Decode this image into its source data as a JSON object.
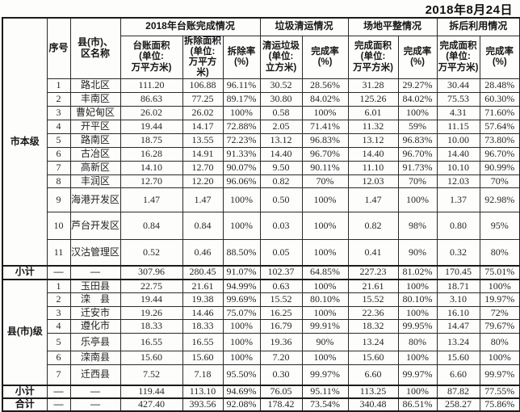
{
  "date": "2018年8月24日",
  "table": {
    "corner_groups": [
      "市本级",
      "县(市)级"
    ],
    "header": {
      "index": "序号",
      "name": "县(市)、\n区名称",
      "groups": [
        {
          "label": "2018年台账完成情况",
          "span": 3
        },
        {
          "label": "垃圾清运情况",
          "span": 2
        },
        {
          "label": "场地平整情况",
          "span": 2
        },
        {
          "label": "拆后利用情况",
          "span": 2
        }
      ],
      "columns": [
        "台账面积\n(单位:\n万平方米)",
        "拆除面积\n(单位:\n万平方米)",
        "拆除率\n(%)",
        "清运垃圾\n(单位:\n立方米)",
        "完成率\n(%)",
        "完成面积\n(单位:\n万平方米)",
        "完成率\n(%)",
        "完成面积\n(单位:\n万平方米)",
        "完成率\n(%)"
      ]
    },
    "sections": [
      {
        "label": "市本级",
        "rows": [
          {
            "no": "1",
            "name": "路北区",
            "values": [
              "111.20",
              "106.88",
              "96.11%",
              "30.52",
              "28.56%",
              "31.28",
              "29.27%",
              "30.44",
              "28.48%"
            ]
          },
          {
            "no": "2",
            "name": "丰南区",
            "values": [
              "86.63",
              "77.25",
              "89.17%",
              "30.80",
              "84.02%",
              "125.26",
              "84.02%",
              "75.53",
              "60.30%"
            ]
          },
          {
            "no": "3",
            "name": "曹妃甸区",
            "values": [
              "26.02",
              "26.02",
              "100%",
              "0.58",
              "100%",
              "6.01",
              "100%",
              "4.31",
              "71.60%"
            ]
          },
          {
            "no": "4",
            "name": "开平区",
            "values": [
              "19.44",
              "14.17",
              "72.88%",
              "2.05",
              "71.41%",
              "11.32",
              "59%",
              "11.15",
              "57.64%"
            ]
          },
          {
            "no": "5",
            "name": "路南区",
            "values": [
              "18.75",
              "13.55",
              "72.23%",
              "13.12",
              "96.83%",
              "13.12",
              "96.83%",
              "10.00",
              "73.80%"
            ]
          },
          {
            "no": "6",
            "name": "古冶区",
            "values": [
              "16.28",
              "14.91",
              "91.33%",
              "14.40",
              "96.70%",
              "14.40",
              "96.70%",
              "14.40",
              "96.70%"
            ]
          },
          {
            "no": "7",
            "name": "高新区",
            "values": [
              "14.10",
              "12.70",
              "90.07%",
              "9.50",
              "90.11%",
              "11.10",
              "91.73%",
              "10.10",
              "90.99%"
            ]
          },
          {
            "no": "8",
            "name": "丰润区",
            "values": [
              "12.70",
              "12.20",
              "96.06%",
              "0.82",
              "70%",
              "12.03",
              "70%",
              "12.03",
              "70%"
            ]
          },
          {
            "no": "9",
            "name": "海港开发区",
            "values": [
              "1.47",
              "1.47",
              "100%",
              "0.50",
              "100%",
              "1.47",
              "100%",
              "1.37",
              "92.98%"
            ]
          },
          {
            "no": "10",
            "name": "芦台开发区",
            "values": [
              "0.84",
              "0.84",
              "100%",
              "0.03",
              "100%",
              "0.82",
              "98%",
              "0.80",
              "95%"
            ]
          },
          {
            "no": "11",
            "name": "汉沽管理区",
            "values": [
              "0.52",
              "0.46",
              "88.50%",
              "0.05",
              "100%",
              "0.41",
              "90%",
              "0.32",
              "80%"
            ]
          }
        ],
        "subtotal": {
          "label": "小计",
          "no": "—",
          "name": "—",
          "values": [
            "307.96",
            "280.45",
            "91.07%",
            "102.37",
            "64.85%",
            "227.23",
            "81.02%",
            "170.45",
            "75.01%"
          ]
        }
      },
      {
        "label": "县(市)级",
        "rows": [
          {
            "no": "1",
            "name": "玉田县",
            "values": [
              "22.75",
              "21.61",
              "94.99%",
              "0.63",
              "100%",
              "21.61",
              "100%",
              "18.71",
              "100%"
            ]
          },
          {
            "no": "2",
            "name": "滦　县",
            "values": [
              "19.44",
              "19.38",
              "99.69%",
              "15.52",
              "80.10%",
              "15.52",
              "80.10%",
              "3.10",
              "19.97%"
            ]
          },
          {
            "no": "3",
            "name": "迁安市",
            "values": [
              "19.26",
              "14.46",
              "75.07%",
              "16.25",
              "100%",
              "22.36",
              "100%",
              "16.10",
              "72%"
            ]
          },
          {
            "no": "4",
            "name": "遵化市",
            "values": [
              "18.33",
              "18.33",
              "100%",
              "16.79",
              "99.91%",
              "18.32",
              "99.95%",
              "14.47",
              "79.67%"
            ]
          },
          {
            "no": "5",
            "name": "乐亭县",
            "values": [
              "16.55",
              "16.55",
              "100%",
              "19.36",
              "90%",
              "13.24",
              "80%",
              "13.24",
              "80%"
            ]
          },
          {
            "no": "6",
            "name": "滦南县",
            "values": [
              "15.60",
              "15.60",
              "100%",
              "7.20",
              "100%",
              "15.60",
              "100%",
              "15.60",
              "100%"
            ]
          },
          {
            "no": "7",
            "name": "迁西县",
            "values": [
              "7.52",
              "7.18",
              "95.50%",
              "0.30",
              "99.97%",
              "6.60",
              "99.97%",
              "6.60",
              "99.97%"
            ]
          }
        ],
        "subtotal": {
          "label": "小计",
          "no": "—",
          "name": "—",
          "values": [
            "119.44",
            "113.10",
            "94.69%",
            "76.05",
            "95.11%",
            "113.25",
            "100%",
            "87.82",
            "77.55%"
          ]
        }
      }
    ],
    "total": {
      "label": "合计",
      "no": "—",
      "name": "—",
      "values": [
        "427.40",
        "393.56",
        "92.08%",
        "178.42",
        "73.54%",
        "340.48",
        "86.51%",
        "258.27",
        "75.86%"
      ]
    }
  }
}
